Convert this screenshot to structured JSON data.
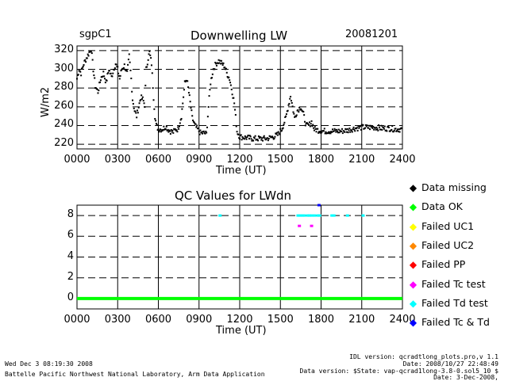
{
  "site": "sgpC1",
  "date": "20081201",
  "footer": {
    "timestamp": "Wed Dec  3 08:19:30 2008",
    "org": "Battelle Pacific Northwest National Laboratory, Arm Data Application",
    "idl_version": "IDL version: qcradtlong_plots.pro,v 1.1",
    "idl_date": "Date: 2008/10/27 22:48:49",
    "data_version": "Data version: $State: vap-qcrad1long-3.8-0.sol5_10 $",
    "data_date": "Date: 3-Dec-2008,"
  },
  "chart_data": [
    {
      "type": "scatter",
      "title": "Downwelling LW",
      "xlabel": "Time (UT)",
      "ylabel": "W/m2",
      "xlim": [
        0,
        24
      ],
      "ylim": [
        215,
        325
      ],
      "xticks": [
        "0000",
        "0300",
        "0600",
        "0900",
        "1200",
        "1500",
        "1800",
        "2100",
        "2400"
      ],
      "yticks": [
        "220",
        "240",
        "260",
        "280",
        "300",
        "320"
      ],
      "color": "#000000",
      "profile": [
        [
          0.0,
          290
        ],
        [
          0.15,
          300
        ],
        [
          0.3,
          296
        ],
        [
          0.5,
          306
        ],
        [
          0.7,
          312
        ],
        [
          0.9,
          318
        ],
        [
          1.05,
          322
        ],
        [
          1.2,
          300
        ],
        [
          1.35,
          282
        ],
        [
          1.55,
          276
        ],
        [
          1.75,
          290
        ],
        [
          1.95,
          296
        ],
        [
          2.15,
          286
        ],
        [
          2.35,
          300
        ],
        [
          2.55,
          292
        ],
        [
          2.7,
          300
        ],
        [
          2.85,
          306
        ],
        [
          3.0,
          300
        ],
        [
          3.15,
          290
        ],
        [
          3.3,
          300
        ],
        [
          3.5,
          304
        ],
        [
          3.7,
          296
        ],
        [
          3.85,
          314
        ],
        [
          4.0,
          290
        ],
        [
          4.1,
          268
        ],
        [
          4.25,
          256
        ],
        [
          4.4,
          250
        ],
        [
          4.55,
          260
        ],
        [
          4.7,
          270
        ],
        [
          4.85,
          268
        ],
        [
          5.0,
          262
        ],
        [
          5.1,
          300
        ],
        [
          5.25,
          312
        ],
        [
          5.35,
          318
        ],
        [
          5.5,
          306
        ],
        [
          5.65,
          270
        ],
        [
          5.75,
          250
        ],
        [
          5.85,
          240
        ],
        [
          6.0,
          236
        ],
        [
          6.3,
          236
        ],
        [
          6.55,
          239
        ],
        [
          6.7,
          236
        ],
        [
          6.9,
          234
        ],
        [
          7.1,
          233
        ],
        [
          7.3,
          236
        ],
        [
          7.45,
          236
        ],
        [
          7.7,
          250
        ],
        [
          7.95,
          285
        ],
        [
          8.1,
          290
        ],
        [
          8.3,
          270
        ],
        [
          8.5,
          248
        ],
        [
          8.7,
          240
        ],
        [
          8.9,
          236
        ],
        [
          9.1,
          232
        ],
        [
          9.4,
          232
        ],
        [
          9.55,
          231
        ],
        [
          9.7,
          260
        ],
        [
          9.85,
          286
        ],
        [
          10.05,
          300
        ],
        [
          10.25,
          306
        ],
        [
          10.45,
          309
        ],
        [
          10.7,
          306
        ],
        [
          10.9,
          303
        ],
        [
          11.05,
          296
        ],
        [
          11.25,
          290
        ],
        [
          11.45,
          276
        ],
        [
          11.6,
          264
        ],
        [
          11.8,
          234
        ],
        [
          12.0,
          228
        ],
        [
          12.5,
          227
        ],
        [
          13.0,
          226
        ],
        [
          13.5,
          226
        ],
        [
          14.0,
          226
        ],
        [
          14.5,
          228
        ],
        [
          14.8,
          230
        ],
        [
          15.1,
          236
        ],
        [
          15.4,
          248
        ],
        [
          15.6,
          262
        ],
        [
          15.75,
          272
        ],
        [
          15.9,
          260
        ],
        [
          16.05,
          248
        ],
        [
          16.25,
          256
        ],
        [
          16.5,
          260
        ],
        [
          16.7,
          252
        ],
        [
          16.9,
          240
        ],
        [
          17.1,
          240
        ],
        [
          17.3,
          244
        ],
        [
          17.5,
          236
        ],
        [
          17.8,
          235
        ],
        [
          18.2,
          234
        ],
        [
          18.6,
          234
        ],
        [
          19.0,
          234
        ],
        [
          19.5,
          234
        ],
        [
          20.0,
          235
        ],
        [
          20.5,
          237
        ],
        [
          21.0,
          238
        ],
        [
          21.5,
          238
        ],
        [
          22.0,
          238
        ],
        [
          22.5,
          237
        ],
        [
          23.0,
          237
        ],
        [
          23.5,
          236
        ],
        [
          24.0,
          236
        ]
      ]
    },
    {
      "type": "scatter",
      "title": "QC Values for LWdn",
      "xlabel": "Time (UT)",
      "ylabel": "",
      "xlim": [
        0,
        24
      ],
      "ylim": [
        -1,
        9
      ],
      "xticks": [
        "0000",
        "0300",
        "0600",
        "0900",
        "1200",
        "1500",
        "1800",
        "2100",
        "2400"
      ],
      "yticks": [
        "0",
        "2",
        "4",
        "6",
        "8"
      ],
      "series": [
        {
          "name": "Data OK",
          "color": "#00ff00",
          "value": 0,
          "x_ranges": [
            [
              0,
              24
            ]
          ]
        },
        {
          "name": "Failed Td test",
          "color": "#00ffff",
          "value": 8,
          "x": [
            10.55,
            16.3,
            16.45,
            16.6,
            16.75,
            17.0,
            17.15,
            17.3,
            17.5,
            17.75,
            17.9,
            18.8,
            18.95,
            19.95,
            21.1
          ]
        },
        {
          "name": "Failed Tc test",
          "color": "#ff00ff",
          "value": 7,
          "x": [
            16.4,
            17.3
          ]
        },
        {
          "name": "Failed Tc & Td",
          "color": "#0000ff",
          "value": 9,
          "x": [
            17.85
          ]
        }
      ]
    }
  ],
  "legend": [
    {
      "label": "Data missing",
      "color": "#000000",
      "glyph": "◆"
    },
    {
      "label": "Data OK",
      "color": "#00ff00",
      "glyph": "◆"
    },
    {
      "label": "Failed UC1",
      "color": "#ffff00",
      "glyph": "◆"
    },
    {
      "label": "Failed UC2",
      "color": "#ff8800",
      "glyph": "◆"
    },
    {
      "label": "Failed PP",
      "color": "#ff0000",
      "glyph": "◆"
    },
    {
      "label": "Failed Tc test",
      "color": "#ff00ff",
      "glyph": "◆"
    },
    {
      "label": "Failed Td test",
      "color": "#00ffff",
      "glyph": "◆"
    },
    {
      "label": "Failed Tc & Td",
      "color": "#0000ff",
      "glyph": "◆"
    }
  ]
}
